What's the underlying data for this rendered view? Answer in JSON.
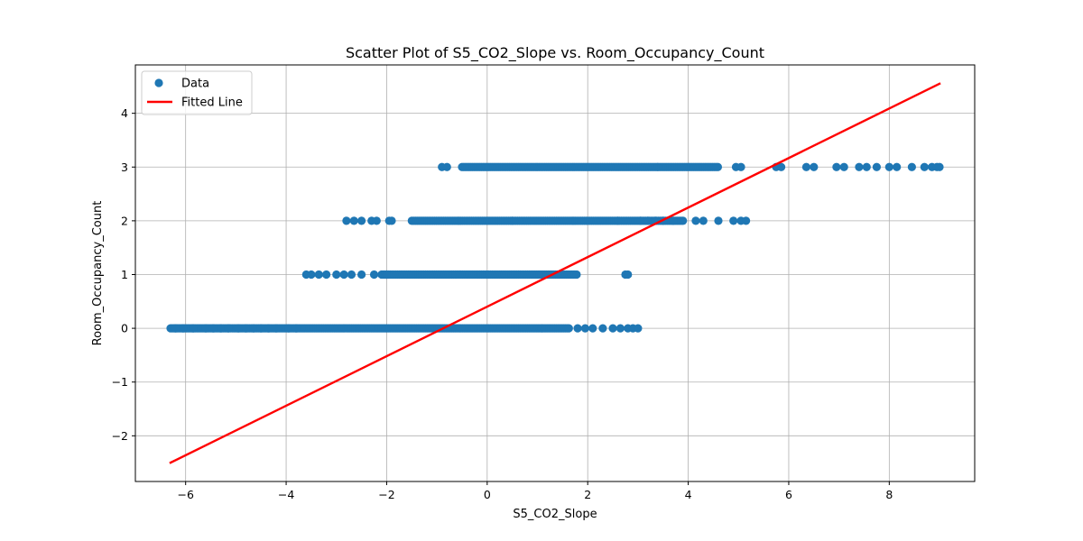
{
  "chart_data": {
    "type": "scatter",
    "title": "Scatter Plot of S5_CO2_Slope vs. Room_Occupancy_Count",
    "xlabel": "S5_CO2_Slope",
    "ylabel": "Room_Occupancy_Count",
    "xlim": [
      -7,
      9.7
    ],
    "ylim": [
      -2.85,
      4.9
    ],
    "xticks": [
      -6,
      -4,
      -2,
      0,
      2,
      4,
      6,
      8
    ],
    "xtick_labels": [
      "−6",
      "−4",
      "−2",
      "0",
      "2",
      "4",
      "6",
      "8"
    ],
    "yticks": [
      -2,
      -1,
      0,
      1,
      2,
      3,
      4
    ],
    "ytick_labels": [
      "−2",
      "−1",
      "0",
      "1",
      "2",
      "3",
      "4"
    ],
    "grid": true,
    "legend": {
      "placement": "top-left",
      "entries": [
        "Data",
        "Fitted Line"
      ]
    },
    "colors": {
      "data": "#1f77b4",
      "fitted_line": "#ff0000"
    },
    "series": [
      {
        "name": "Data",
        "kind": "scatter",
        "points": [
          {
            "y": 0,
            "segments": [
              [
                -6.3,
                -2.0
              ],
              [
                -2.0,
                1.1
              ],
              [
                1.1,
                1.65
              ]
            ],
            "x_points": [
              -6.2,
              -6.05,
              -5.85,
              -5.6,
              -5.45,
              -5.3,
              -5.15,
              -4.95,
              -4.8,
              -4.65,
              -4.5,
              -4.35,
              -4.2,
              -3.95,
              -3.8,
              1.8,
              1.95,
              2.1,
              2.3,
              2.5,
              2.65,
              2.8,
              2.9,
              3.0
            ]
          },
          {
            "y": 1,
            "segments": [
              [
                -2.1,
                -0.6
              ],
              [
                -0.6,
                1.8
              ]
            ],
            "x_points": [
              -3.6,
              -3.5,
              -3.35,
              -3.2,
              -3.0,
              -2.85,
              -2.7,
              -2.5,
              -2.25,
              -2.0,
              2.75,
              2.8
            ]
          },
          {
            "y": 2,
            "segments": [
              [
                -1.5,
                0.5
              ],
              [
                0.5,
                2.6
              ],
              [
                2.6,
                3.9
              ]
            ],
            "x_points": [
              -2.8,
              -2.65,
              -2.5,
              -2.3,
              -2.2,
              -1.95,
              -1.9,
              3.05,
              3.2,
              3.35,
              3.5,
              3.7,
              4.15,
              4.3,
              4.6,
              4.9,
              5.05,
              5.15
            ]
          },
          {
            "y": 3,
            "segments": [
              [
                -0.5,
                1.0
              ],
              [
                1.0,
                3.4
              ],
              [
                3.4,
                4.6
              ]
            ],
            "x_points": [
              -0.9,
              -0.8,
              4.95,
              5.05,
              5.75,
              5.85,
              6.35,
              6.5,
              6.95,
              7.1,
              7.4,
              7.55,
              7.75,
              8.0,
              8.15,
              8.45,
              8.7,
              8.85,
              8.95,
              9.0
            ]
          }
        ]
      },
      {
        "name": "Fitted Line",
        "kind": "line",
        "x": [
          -6.3,
          9.0
        ],
        "y": [
          -2.5,
          4.55
        ]
      }
    ]
  }
}
